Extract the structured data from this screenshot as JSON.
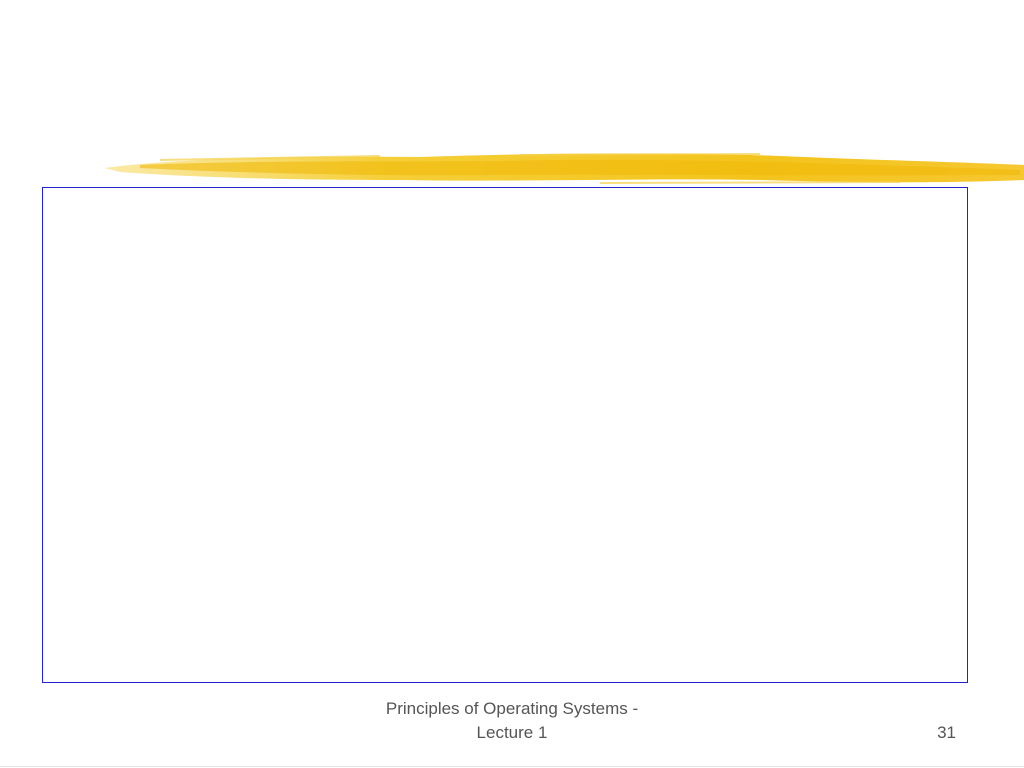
{
  "footer": {
    "title_lines": [
      "Principles of Operating Systems -",
      "Lecture 1"
    ],
    "page_number": "31"
  }
}
